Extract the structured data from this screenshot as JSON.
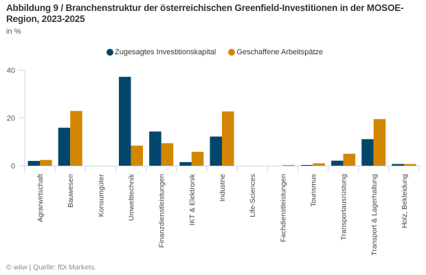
{
  "header": {
    "title": "Abbildung 9 / Branchenstruktur der österreichischen Greenfield-Investitionen in der MOSOE-Region, 2023-2025",
    "unit": "in %"
  },
  "footer": {
    "source": "© wiiw | Quelle: fDi Markets."
  },
  "colors": {
    "series1": "#00476b",
    "series2": "#d38600",
    "axis": "#ccd6e6"
  },
  "chart_data": {
    "type": "bar",
    "title": "Abbildung 9 / Branchenstruktur der österreichischen Greenfield-Investitionen in der MOSOE-Region, 2023-2025",
    "xlabel": "",
    "ylabel": "in %",
    "ylim": [
      0,
      40
    ],
    "yticks": [
      0,
      20,
      40
    ],
    "grid": false,
    "legend_position": "top-center",
    "categories": [
      "Agrarwirtschaft",
      "Bauwesen",
      "Konsumgüter",
      "Umwelttechnik",
      "Finanzdienstleistungen",
      "IKT & Elektronik",
      "Industrie",
      "Life-Sciences",
      "Fachdienstleistungen",
      "Tourismus",
      "Transportausrüstung",
      "Transport & Lagerhaltung",
      "Holz, Bekleidung"
    ],
    "series": [
      {
        "name": "Zugesagtes Investitionskapital",
        "color": "#00476b",
        "values": [
          2.0,
          15.9,
          0,
          37.2,
          14.3,
          1.5,
          12.2,
          0,
          0,
          0.3,
          2.1,
          11.1,
          0.7
        ]
      },
      {
        "name": "Geschaffene Arbeitspätze",
        "color": "#d38600",
        "values": [
          2.4,
          22.9,
          0,
          8.4,
          9.4,
          5.8,
          22.7,
          0,
          0.3,
          1.0,
          5.0,
          19.5,
          0.7
        ]
      }
    ]
  }
}
